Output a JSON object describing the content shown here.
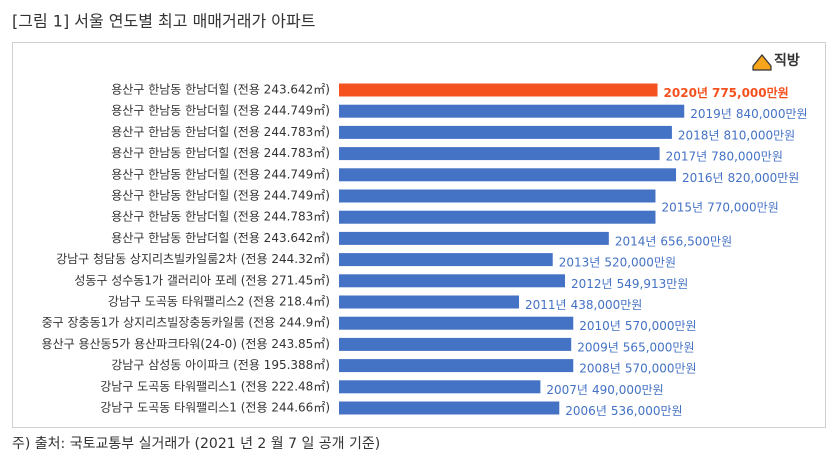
{
  "chart_data": {
    "type": "bar",
    "orientation": "horizontal",
    "title": "[그림 1] 서울 연도별 최고 매매거래가 아파트",
    "logo": "직방",
    "footnote": "주) 출처: 국토교통부 실거래가 (2021 년 2 월 7 일 공개 기준)",
    "categories": [
      "용산구 한남동 한남더힐 (전용 243.642㎡)",
      "용산구 한남동 한남더힐 (전용 244.749㎡)",
      "용산구 한남동 한남더힐 (전용 244.783㎡)",
      "용산구 한남동 한남더힐 (전용 244.783㎡)",
      "용산구 한남동 한남더힐 (전용 244.749㎡)",
      "용산구 한남동 한남더힐 (전용 244.749㎡)",
      "용산구 한남동 한남더힐 (전용 244.783㎡)",
      "용산구 한남동 한남더힐 (전용 243.642㎡)",
      "강남구 청담동 상지리츠빌카일룸2차 (전용 244.32㎡)",
      "성동구 성수동1가 갤러리아 포레 (전용 271.45㎡)",
      "강남구 도곡동 타워팰리스2 (전용 218.4㎡)",
      "중구 장충동1가 상지리츠빌장충동카일룸 (전용 244.9㎡)",
      "용산구 용산동5가 용산파크타워(24-0) (전용 243.85㎡)",
      "강남구 삼성동 아이파크 (전용 195.388㎡)",
      "강남구 도곡동 타워팰리스1 (전용 222.48㎡)",
      "강남구 도곡동 타워팰리스1 (전용 244.66㎡)"
    ],
    "years": [
      "2020년",
      "2019년",
      "2018년",
      "2017년",
      "2016년",
      "2015년",
      null,
      "2014년",
      "2013년",
      "2012년",
      "2011년",
      "2010년",
      "2009년",
      "2008년",
      "2007년",
      "2006년"
    ],
    "values": [
      775000,
      840000,
      810000,
      780000,
      820000,
      770000,
      770000,
      656500,
      520000,
      549913,
      438000,
      570000,
      565000,
      570000,
      490000,
      536000
    ],
    "value_labels": [
      "775,000만원",
      "840,000만원",
      "810,000만원",
      "780,000만원",
      "820,000만원",
      "770,000만원",
      null,
      "656,500만원",
      "520,000만원",
      "549,913만원",
      "438,000만원",
      "570,000만원",
      "565,000만원",
      "570,000만원",
      "490,000만원",
      "536,000만원"
    ],
    "colors": [
      "#f4511e",
      "#4472c4",
      "#4472c4",
      "#4472c4",
      "#4472c4",
      "#4472c4",
      "#4472c4",
      "#4472c4",
      "#4472c4",
      "#4472c4",
      "#4472c4",
      "#4472c4",
      "#4472c4",
      "#4472c4",
      "#4472c4",
      "#4472c4"
    ]
  }
}
